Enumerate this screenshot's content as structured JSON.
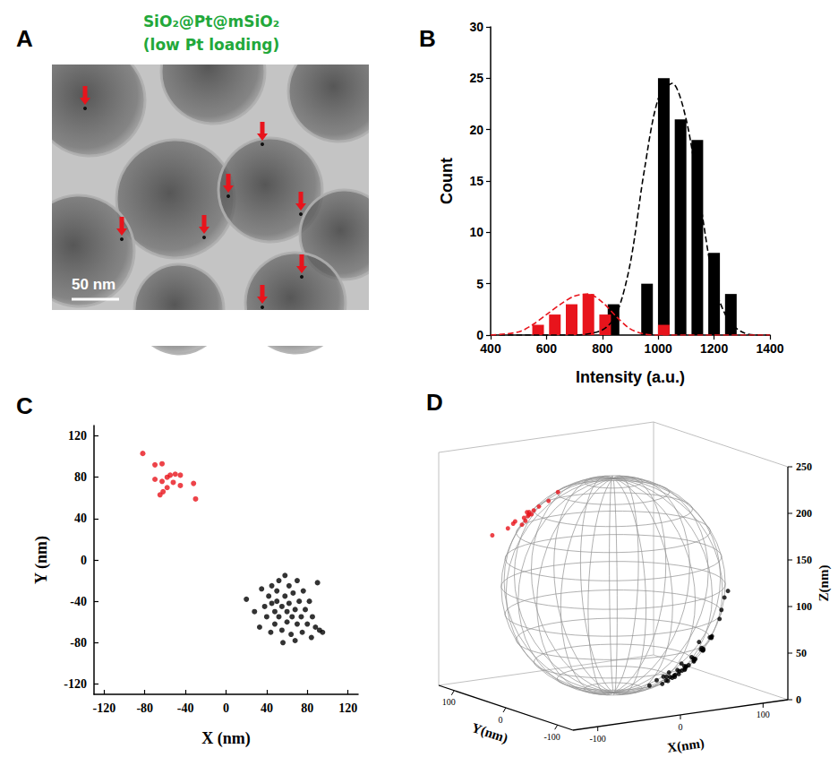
{
  "chart_data": [
    {
      "panel": "A",
      "type": "image",
      "title": "SiO₂@Pt@mSiO₂",
      "subtitle": "(low Pt loading)",
      "color": "#22a83a",
      "annotations": [
        "50 nm"
      ]
    },
    {
      "panel": "B",
      "type": "bar",
      "xlabel": "Intensity (a.u.)",
      "ylabel": "Count",
      "xlim": [
        400,
        1400
      ],
      "xticks": [
        400,
        600,
        800,
        1000,
        1200,
        1400
      ],
      "ylim": [
        0,
        30
      ],
      "yticks": [
        0,
        5,
        10,
        15,
        20,
        25,
        30
      ],
      "grid": false,
      "series": [
        {
          "type": "bar",
          "color": "#000000",
          "x": [
            840,
            960,
            1020,
            1080,
            1140,
            1200,
            1260
          ],
          "values": [
            3,
            5,
            25,
            21,
            19,
            8,
            4
          ]
        },
        {
          "type": "bar",
          "color": "#e8141c",
          "x": [
            570,
            630,
            690,
            750,
            810,
            1020
          ],
          "values": [
            1,
            2,
            3,
            4,
            2,
            1
          ]
        },
        {
          "type": "line",
          "line_style": "dashed",
          "color": "#000000",
          "x": [
            400,
            700,
            800,
            850,
            900,
            950,
            1000,
            1050,
            1100,
            1150,
            1200,
            1250,
            1300,
            1350,
            1400
          ],
          "values": [
            0,
            0,
            0.5,
            2,
            7,
            16,
            23,
            24.5,
            21,
            13,
            5,
            1.5,
            0.3,
            0,
            0
          ]
        },
        {
          "type": "line",
          "line_style": "dashed",
          "color": "#e8141c",
          "x": [
            400,
            500,
            550,
            600,
            650,
            700,
            750,
            800,
            850,
            900,
            950,
            1000,
            1100,
            1200,
            1300,
            1400
          ],
          "values": [
            0,
            0.3,
            1,
            2,
            3,
            3.8,
            4,
            3.2,
            1.8,
            0.6,
            0.1,
            0,
            0,
            0,
            0,
            0
          ]
        }
      ]
    },
    {
      "panel": "C",
      "type": "scatter",
      "xlabel": "X (nm)",
      "ylabel": "Y (nm)",
      "xlim": [
        -130,
        130
      ],
      "xticks": [
        -120,
        -80,
        -40,
        0,
        40,
        80,
        120
      ],
      "ylim": [
        -130,
        130
      ],
      "yticks": [
        -120,
        -80,
        -40,
        0,
        40,
        80,
        120
      ],
      "grid": false,
      "series": [
        {
          "color": "#e8141c",
          "marker": "circle",
          "x": [
            -82,
            -70,
            -63,
            -70,
            -63,
            -58,
            -55,
            -50,
            -45,
            -52,
            -58,
            -62,
            -65,
            -45,
            -32,
            -30
          ],
          "values": [
            103,
            92,
            93,
            78,
            76,
            80,
            82,
            83,
            82,
            75,
            70,
            66,
            63,
            72,
            74,
            59
          ]
        },
        {
          "color": "#000000",
          "marker": "circle",
          "x": [
            20,
            35,
            38,
            40,
            42,
            45,
            45,
            48,
            48,
            50,
            50,
            52,
            52,
            55,
            55,
            58,
            58,
            60,
            60,
            62,
            62,
            64,
            65,
            66,
            68,
            70,
            70,
            72,
            74,
            75,
            76,
            78,
            80,
            82,
            84,
            85,
            88,
            90,
            92,
            95,
            33,
            44,
            56,
            68,
            28
          ],
          "values": [
            -38,
            -28,
            -45,
            -55,
            -35,
            -25,
            -42,
            -50,
            -62,
            -30,
            -40,
            -20,
            -55,
            -45,
            -68,
            -35,
            -15,
            -50,
            -60,
            -25,
            -42,
            -72,
            -55,
            -32,
            -48,
            -20,
            -62,
            -40,
            -55,
            -70,
            -30,
            -48,
            -62,
            -40,
            -75,
            -55,
            -65,
            -22,
            -68,
            -70,
            -65,
            -70,
            -80,
            -78,
            -50
          ]
        }
      ]
    },
    {
      "panel": "D",
      "type": "scatter3d",
      "xlabel": "X(nm)",
      "ylabel": "Y(nm)",
      "zlabel": "Z(nm)",
      "xlim": [
        -130,
        130
      ],
      "xticks": [
        -100,
        0,
        100
      ],
      "ylim": [
        -130,
        130
      ],
      "yticks": [
        -100,
        0,
        100
      ],
      "zlim": [
        0,
        250
      ],
      "zticks": [
        0,
        50,
        100,
        150,
        200,
        250
      ],
      "sphere": {
        "center": [
          0,
          0,
          115
        ],
        "radius": 115
      },
      "series": [
        {
          "color": "#e8141c",
          "marker": "circle",
          "x": [
            -82,
            -70,
            -63,
            -70,
            -63,
            -58,
            -55,
            -50,
            -45,
            -52,
            -58,
            -62,
            -65,
            -45,
            -32,
            -30
          ],
          "y": [
            103,
            92,
            93,
            78,
            76,
            80,
            82,
            83,
            82,
            75,
            70,
            66,
            63,
            72,
            74,
            59
          ],
          "z": [
            160,
            168,
            172,
            178,
            174,
            180,
            176,
            182,
            186,
            184,
            188,
            185,
            190,
            192,
            196,
            208
          ]
        },
        {
          "color": "#000000",
          "marker": "circle",
          "x": [
            20,
            35,
            38,
            40,
            42,
            45,
            45,
            48,
            48,
            50,
            50,
            52,
            52,
            55,
            55,
            58,
            58,
            60,
            60,
            62,
            62,
            64,
            65,
            66,
            68,
            70,
            70,
            72,
            74,
            75,
            76,
            78,
            80,
            82,
            84,
            85,
            88,
            90,
            92,
            95,
            33,
            44,
            56,
            68,
            28
          ],
          "y": [
            -38,
            -28,
            -45,
            -55,
            -35,
            -25,
            -42,
            -50,
            -62,
            -30,
            -40,
            -20,
            -55,
            -45,
            -68,
            -35,
            -15,
            -50,
            -60,
            -25,
            -42,
            -72,
            -55,
            -32,
            -48,
            -20,
            -62,
            -40,
            -55,
            -70,
            -30,
            -48,
            -62,
            -40,
            -75,
            -55,
            -65,
            -22,
            -68,
            -70,
            -65,
            -70,
            -80,
            -78,
            -50
          ],
          "z": [
            12,
            14,
            16,
            22,
            14,
            16,
            18,
            23,
            31,
            16,
            20,
            14,
            28,
            25,
            40,
            22,
            17,
            31,
            37,
            21,
            28,
            52,
            38,
            26,
            36,
            26,
            48,
            35,
            46,
            63,
            34,
            45,
            60,
            45,
            92,
            60,
            80,
            47,
            103,
            110,
            26,
            35,
            54,
            65,
            15
          ]
        }
      ]
    }
  ]
}
